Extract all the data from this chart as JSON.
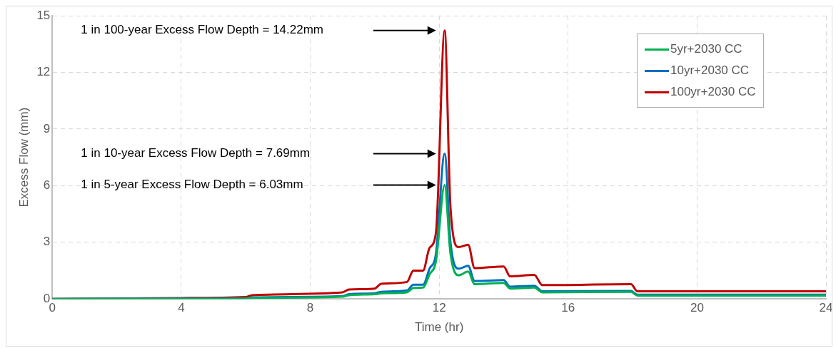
{
  "chart_data": {
    "type": "line",
    "xlabel": "Time (hr)",
    "ylabel": "Excess Flow (mm)",
    "xlim": [
      0,
      24
    ],
    "xticks": [
      0,
      4,
      8,
      12,
      16,
      20,
      24
    ],
    "ylim": [
      0,
      15
    ],
    "yticks": [
      0,
      3,
      6,
      9,
      12,
      15
    ],
    "grid": true,
    "legend": "top right",
    "marker": "none",
    "line_style": "solid",
    "annotations": [
      "1 in 100-year Excess Flow Depth = 14.22mm",
      "1 in 10-year Excess Flow Depth = 7.69mm",
      "1 in 5-year Excess Flow Depth = 6.03mm"
    ],
    "x": [
      0,
      4,
      6,
      6.2,
      9,
      9.2,
      10,
      10.2,
      11,
      11.2,
      11.5,
      11.7,
      11.9,
      12.17,
      12.35,
      12.6,
      12.9,
      13.1,
      14.0,
      14.2,
      14.95,
      15.2,
      17.95,
      18.15,
      24
    ],
    "series": [
      {
        "name": "5yr+2030 CC",
        "color": "#00b050",
        "values": [
          0,
          0.01,
          0.02,
          0.05,
          0.12,
          0.2,
          0.25,
          0.3,
          0.35,
          0.58,
          0.6,
          1.3,
          2.0,
          6.03,
          2.4,
          1.25,
          1.45,
          0.78,
          0.85,
          0.55,
          0.6,
          0.35,
          0.38,
          0.18,
          0.18
        ]
      },
      {
        "name": "10yr+2030 CC",
        "color": "#0070c0",
        "values": [
          0,
          0.02,
          0.03,
          0.08,
          0.15,
          0.25,
          0.3,
          0.38,
          0.45,
          0.75,
          0.75,
          1.6,
          2.4,
          7.69,
          3.0,
          1.6,
          1.75,
          0.95,
          1.0,
          0.65,
          0.7,
          0.4,
          0.42,
          0.22,
          0.22
        ]
      },
      {
        "name": "100yr+2030 CC",
        "color": "#c00000",
        "values": [
          0,
          0.05,
          0.1,
          0.2,
          0.35,
          0.5,
          0.55,
          0.8,
          0.9,
          1.5,
          1.5,
          2.7,
          3.5,
          14.22,
          4.87,
          2.75,
          2.87,
          1.63,
          1.72,
          1.2,
          1.27,
          0.73,
          0.78,
          0.4,
          0.4
        ]
      }
    ]
  }
}
